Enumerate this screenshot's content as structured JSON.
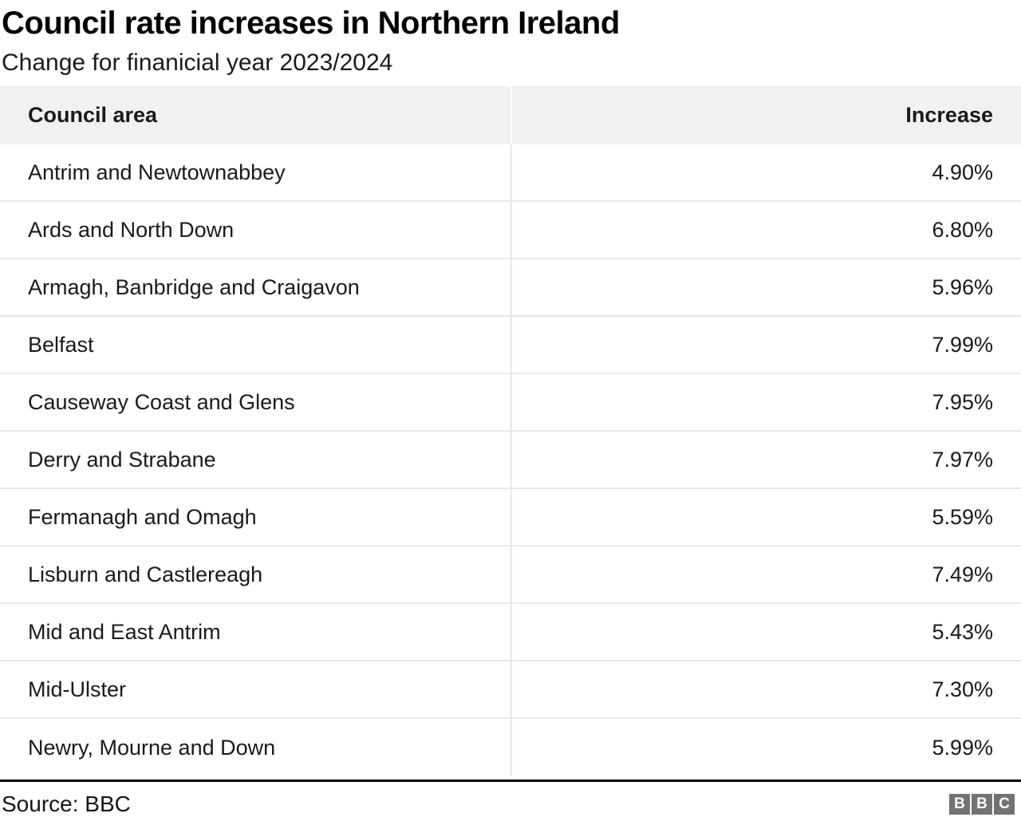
{
  "title": "Council rate increases in Northern Ireland",
  "subtitle": "Change for finanicial year 2023/2024",
  "table": {
    "col_area_header": "Council area",
    "col_increase_header": "Increase"
  },
  "footer": {
    "source": "Source: BBC",
    "logo_letters": [
      "B",
      "B",
      "C"
    ]
  },
  "colors": {
    "header_bg": "#f1f1f1",
    "separator": "#e8e8e8",
    "rule": "#000000",
    "logo_box": "#737373"
  },
  "chart_data": {
    "type": "table",
    "title": "Council rate increases in Northern Ireland",
    "subtitle": "Change for finanicial year 2023/2024",
    "columns": [
      "Council area",
      "Increase"
    ],
    "categories": [
      "Antrim and Newtownabbey",
      "Ards and North Down",
      "Armagh, Banbridge and Craigavon",
      "Belfast",
      "Causeway Coast and Glens",
      "Derry and Strabane",
      "Fermanagh and Omagh",
      "Lisburn and Castlereagh",
      "Mid and East Antrim",
      "Mid-Ulster",
      "Newry, Mourne and Down"
    ],
    "values": [
      4.9,
      6.8,
      5.96,
      7.99,
      7.95,
      7.97,
      5.59,
      7.49,
      5.43,
      7.3,
      5.99
    ],
    "rows": [
      [
        "Antrim and Newtownabbey",
        "4.90%"
      ],
      [
        "Ards and North Down",
        "6.80%"
      ],
      [
        "Armagh, Banbridge and Craigavon",
        "5.96%"
      ],
      [
        "Belfast",
        "7.99%"
      ],
      [
        "Causeway Coast and Glens",
        "7.95%"
      ],
      [
        "Derry and Strabane",
        "7.97%"
      ],
      [
        "Fermanagh and Omagh",
        "5.59%"
      ],
      [
        "Lisburn and Castlereagh",
        "7.49%"
      ],
      [
        "Mid and East Antrim",
        "5.43%"
      ],
      [
        "Mid-Ulster",
        "7.30%"
      ],
      [
        "Newry, Mourne and Down",
        "5.99%"
      ]
    ],
    "source": "Source: BBC"
  }
}
